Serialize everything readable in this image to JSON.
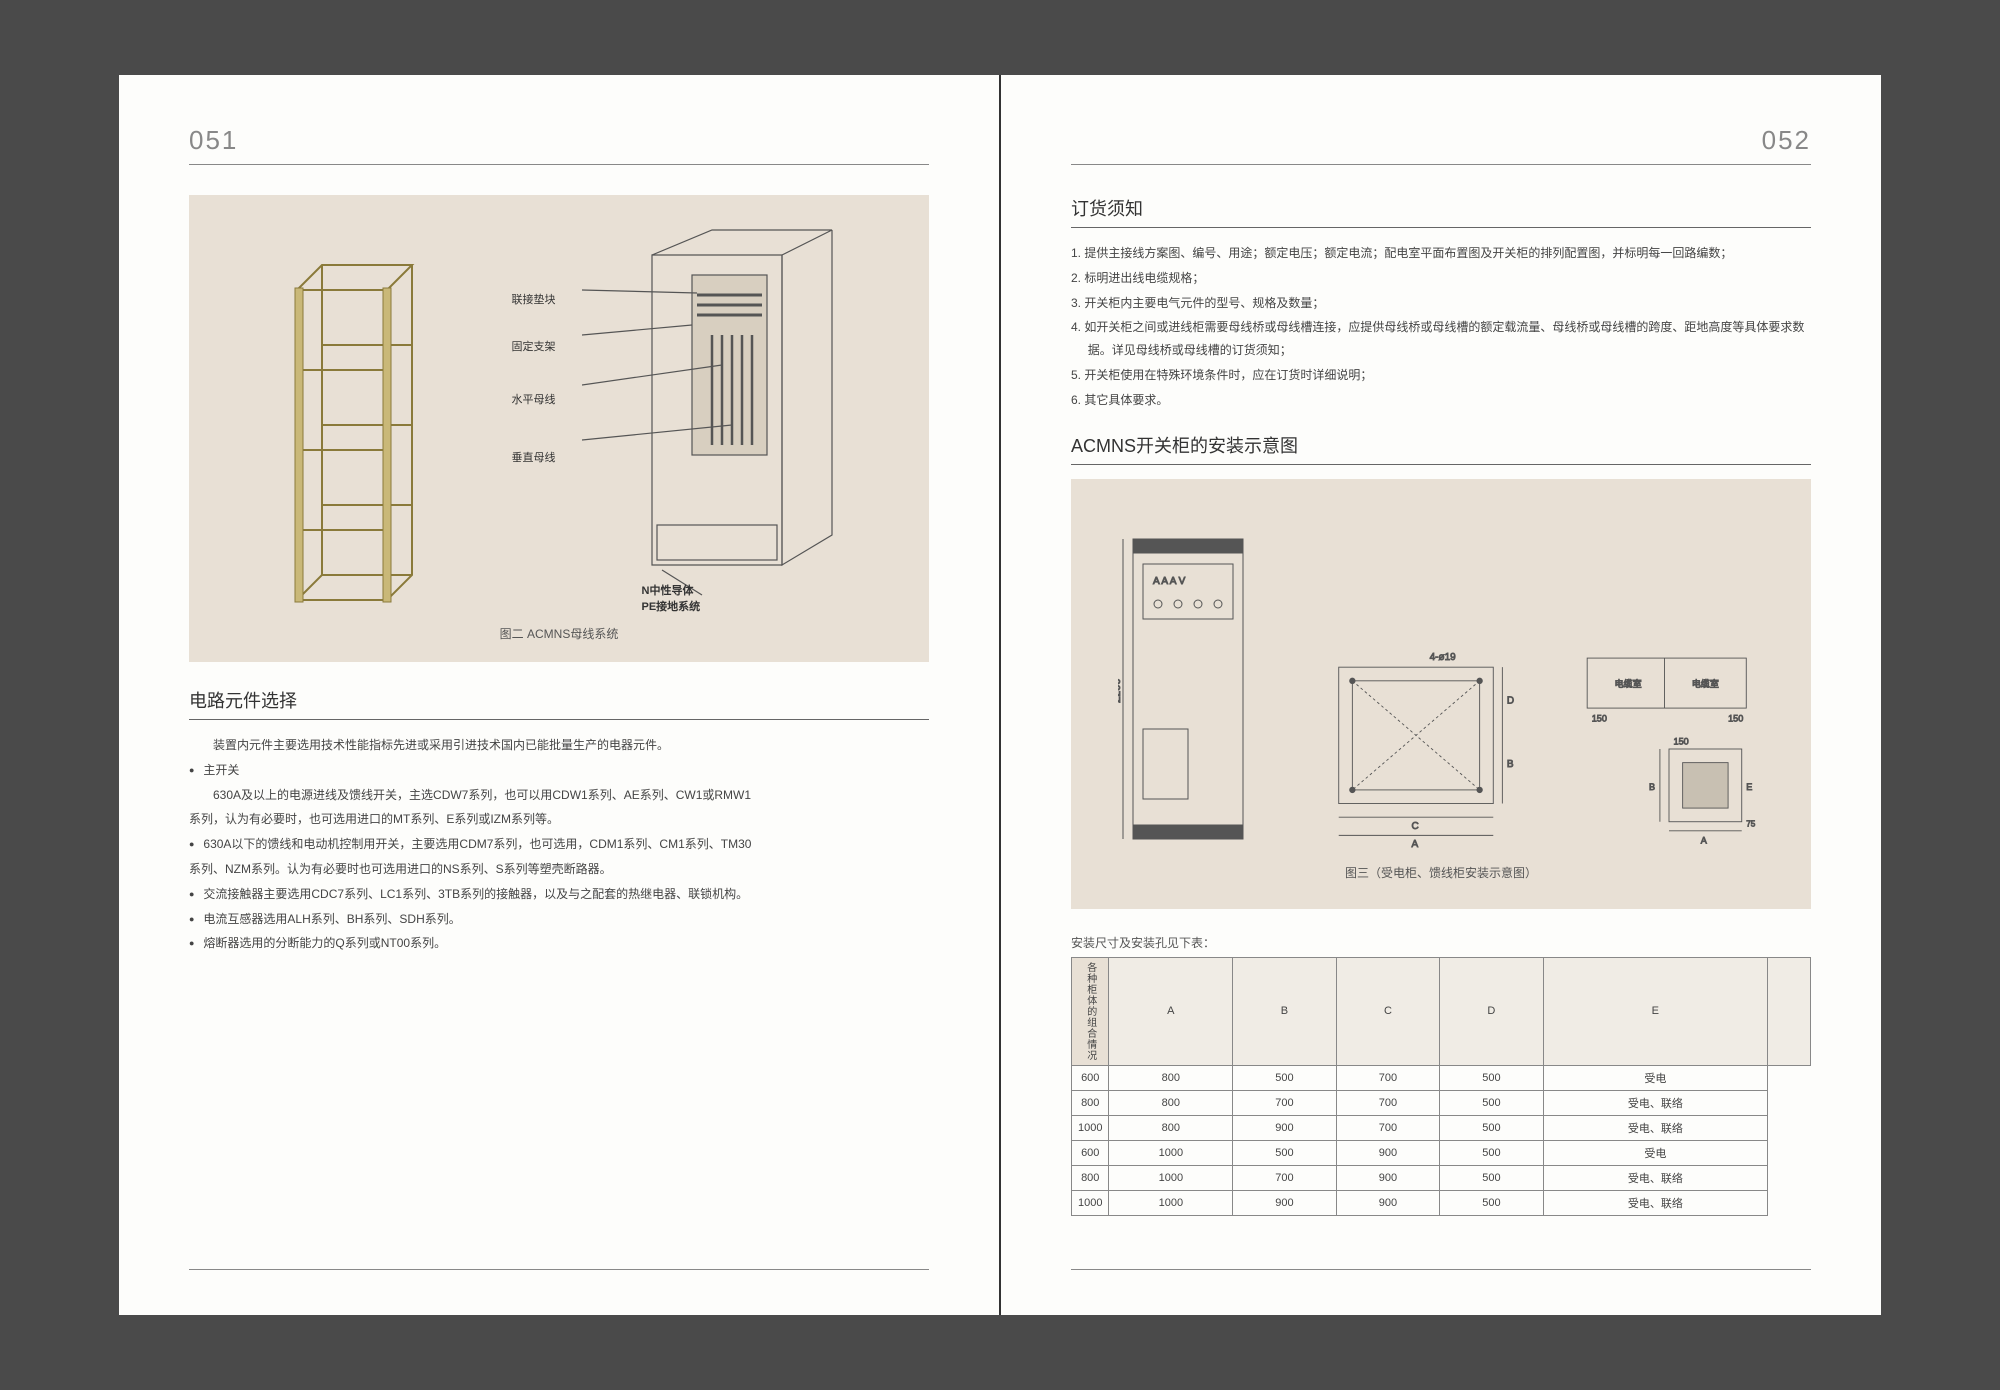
{
  "background_color": "#4a4a4a",
  "page_background": "#fdfdfb",
  "figure_background": "#e8e0d5",
  "left_page": {
    "page_number": "051",
    "figure": {
      "labels": [
        "联接垫块",
        "固定支架",
        "水平母线",
        "垂直母线"
      ],
      "bottom_labels": [
        "N中性导体",
        "PE接地系统"
      ],
      "caption": "图二 ACMNS母线系统"
    },
    "section_title": "电路元件选择",
    "intro": "装置内元件主要选用技术性能指标先进或采用引进技术国内已能批量生产的电器元件。",
    "items": [
      {
        "title": "主开关",
        "lines": [
          "630A及以上的电源进线及馈线开关，主选CDW7系列，也可以用CDW1系列、AE系列、CW1或RMW1",
          "系列，认为有必要时，也可选用进口的MT系列、E系列或IZM系列等。"
        ]
      },
      {
        "title": "630A以下的馈线和电动机控制用开关，主要选用CDM7系列，也可选用，CDM1系列、CM1系列、TM30",
        "lines": [
          "系列、NZM系列。认为有必要时也可选用进口的NS系列、S系列等塑壳断路器。"
        ]
      },
      {
        "title": "交流接触器主要选用CDC7系列、LC1系列、3TB系列的接触器，以及与之配套的热继电器、联锁机构。",
        "lines": []
      },
      {
        "title": "电流互感器选用ALH系列、BH系列、SDH系列。",
        "lines": []
      },
      {
        "title": "熔断器选用的分断能力的Q系列或NT00系列。",
        "lines": []
      }
    ]
  },
  "right_page": {
    "page_number": "052",
    "section1_title": "订货须知",
    "ordered": [
      "1. 提供主接线方案图、编号、用途；额定电压；额定电流；配电室平面布置图及开关柜的排列配置图，并标明每一回路编数；",
      "2. 标明进出线电缆规格；",
      "3. 开关柜内主要电气元件的型号、规格及数量；",
      "4. 如开关柜之间或进线柜需要母线桥或母线槽连接，应提供母线桥或母线槽的额定载流量、母线桥或母线槽的跨度、距地高度等具体要求数据。详见母线桥或母线槽的订货须知；",
      "5. 开关柜使用在特殊环境条件时，应在订货时详细说明；",
      "6. 其它具体要求。"
    ],
    "section2_title": "ACMNS开关柜的安装示意图",
    "diagram": {
      "dimension_label": "2200",
      "hole_label": "4-ø19",
      "dim_labels": [
        "A",
        "B",
        "C",
        "D",
        "E"
      ],
      "small_dims": [
        "150",
        "150",
        "150",
        "75"
      ],
      "panel_text": [
        "电缆室",
        "电缆室"
      ],
      "caption": "图三（受电柜、馈线柜安装示意图）"
    },
    "table_caption": "安装尺寸及安装孔见下表：",
    "table": {
      "row_header": "各种柜体的组合情况",
      "columns": [
        "A",
        "B",
        "C",
        "D",
        "E",
        ""
      ],
      "rows": [
        [
          "600",
          "800",
          "500",
          "700",
          "500",
          "受电"
        ],
        [
          "800",
          "800",
          "700",
          "700",
          "500",
          "受电、联络"
        ],
        [
          "1000",
          "800",
          "900",
          "700",
          "500",
          "受电、联络"
        ],
        [
          "600",
          "1000",
          "500",
          "900",
          "500",
          "受电"
        ],
        [
          "800",
          "1000",
          "700",
          "900",
          "500",
          "受电、联络"
        ],
        [
          "1000",
          "1000",
          "900",
          "900",
          "500",
          "受电、联络"
        ]
      ]
    }
  }
}
